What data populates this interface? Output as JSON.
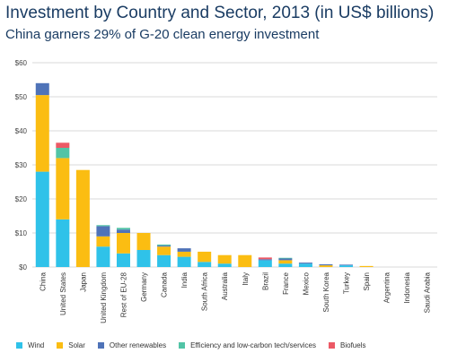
{
  "colors": {
    "wind": "#2fc2e9",
    "solar": "#fbbd12",
    "other_renewables": "#4f73b8",
    "efficiency": "#52c4a6",
    "biofuels": "#ec5965",
    "text": "#1a3c63",
    "grid": "#d8d8d8"
  },
  "chart_data": {
    "type": "bar",
    "stacked": true,
    "title": "Investment by Country and Sector, 2013 (in US$ billions)",
    "subtitle": "China garners 29% of G-20 clean energy investment",
    "ylim": [
      0,
      60
    ],
    "y_ticks": [
      "$0",
      "$10",
      "$20",
      "$30",
      "$40",
      "$50",
      "$60"
    ],
    "grid": true,
    "legend_position": "bottom",
    "categories": [
      "China",
      "United States",
      "Japan",
      "United Kingdom",
      "Rest of EU-28",
      "Germany",
      "Canada",
      "India",
      "South Africa",
      "Australia",
      "Italy",
      "Brazil",
      "France",
      "Mexico",
      "South Korea",
      "Turkey",
      "Spain",
      "Argentina",
      "Indonesia",
      "Saudi Arabia"
    ],
    "series": [
      {
        "name": "Wind",
        "key": "wind",
        "values": [
          28.0,
          14.0,
          0.0,
          6.0,
          4.0,
          5.0,
          3.5,
          3.0,
          1.5,
          1.0,
          0.0,
          2.0,
          1.0,
          1.0,
          0.0,
          0.5,
          0.0,
          0.0,
          0.0,
          0.0
        ]
      },
      {
        "name": "Solar",
        "key": "solar",
        "values": [
          22.5,
          18.0,
          28.5,
          3.0,
          6.0,
          5.0,
          2.5,
          1.5,
          3.0,
          2.5,
          3.5,
          0.0,
          1.0,
          0.0,
          0.5,
          0.0,
          0.3,
          0.0,
          0.0,
          0.0
        ]
      },
      {
        "name": "Other renewables",
        "key": "other_renewables",
        "values": [
          3.5,
          0.0,
          0.0,
          3.0,
          1.0,
          0.0,
          0.3,
          1.0,
          0.0,
          0.0,
          0.0,
          0.3,
          0.5,
          0.3,
          0.3,
          0.2,
          0.0,
          0.0,
          0.0,
          0.0
        ]
      },
      {
        "name": "Efficiency and low-carbon tech/services",
        "key": "efficiency",
        "values": [
          0.0,
          3.0,
          0.0,
          0.3,
          0.5,
          0.0,
          0.3,
          0.0,
          0.0,
          0.0,
          0.0,
          0.0,
          0.2,
          0.0,
          0.0,
          0.0,
          0.0,
          0.0,
          0.0,
          0.0
        ]
      },
      {
        "name": "Biofuels",
        "key": "biofuels",
        "values": [
          0.0,
          1.5,
          0.0,
          0.0,
          0.0,
          0.0,
          0.0,
          0.0,
          0.0,
          0.0,
          0.0,
          0.5,
          0.0,
          0.0,
          0.0,
          0.0,
          0.0,
          0.0,
          0.0,
          0.0
        ]
      }
    ]
  }
}
